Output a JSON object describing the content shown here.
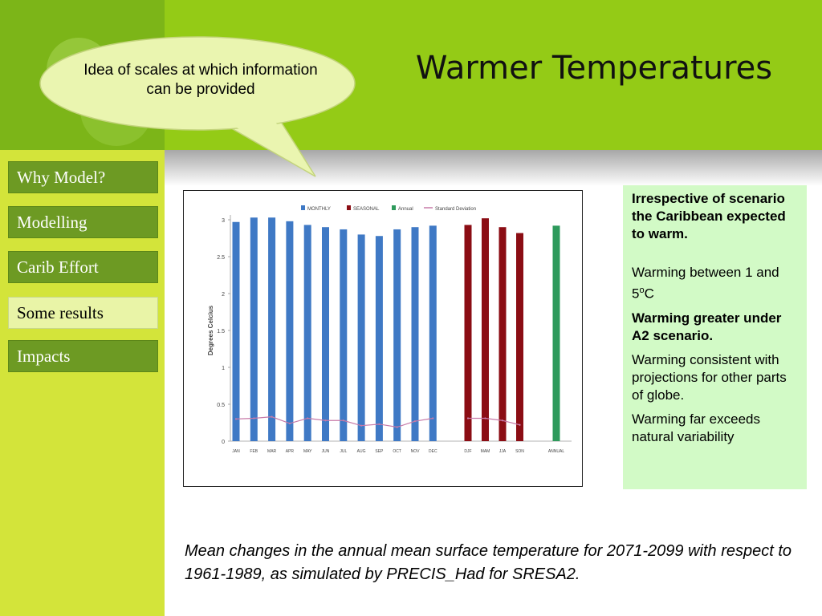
{
  "slide": {
    "title": "Warmer Temperatures",
    "callout": "Idea of scales at which information can be provided",
    "caption": "Mean changes in the annual mean surface temperature  for 2071-2099 with respect to 1961-1989, as simulated by PRECIS_Had for SRESA2."
  },
  "nav": [
    {
      "label": "Why Model?",
      "active": false
    },
    {
      "label": "Modelling",
      "active": false
    },
    {
      "label": "Carib Effort",
      "active": false
    },
    {
      "label": "Some results",
      "active": true
    },
    {
      "label": "Impacts",
      "active": false
    }
  ],
  "sidebox": {
    "p1": "Irrespective of scenario the Caribbean expected to warm.",
    "p2_pre": "Warming between 1 and 5",
    "p2_sup": "o",
    "p2_post": "C",
    "p3": "Warming greater under A2 scenario.",
    "p4": "Warming consistent with projections for other parts of globe.",
    "p5": "Warming far exceeds natural variability"
  },
  "chart_data": {
    "type": "bar",
    "ylabel": "Degrees Celcius",
    "ylim": [
      0,
      3
    ],
    "yticks": [
      "0",
      "0.5",
      "1",
      "1.5",
      "2",
      "2.5",
      "3"
    ],
    "grid": false,
    "legend_position": "top",
    "legend": [
      {
        "label": "MONTHLY",
        "color": "#3f79c5"
      },
      {
        "label": "SEASONAL",
        "color": "#8b0d14"
      },
      {
        "label": "Annual",
        "color": "#2e9a5c"
      },
      {
        "label": "Standard Deviation",
        "color": "#c77aa8"
      }
    ],
    "categories": [
      "JAN",
      "FEB",
      "MAR",
      "APR",
      "MAY",
      "JUN",
      "JUL",
      "AUG",
      "SEP",
      "OCT",
      "NOV",
      "DEC",
      "DJF",
      "MAM",
      "JJA",
      "SON",
      "ANNUAL"
    ],
    "series": [
      {
        "name": "MONTHLY",
        "color": "#3f79c5",
        "values": [
          2.97,
          3.03,
          3.03,
          2.98,
          2.93,
          2.9,
          2.87,
          2.8,
          2.78,
          2.87,
          2.9,
          2.92,
          null,
          null,
          null,
          null,
          null
        ]
      },
      {
        "name": "SEASONAL",
        "color": "#8b0d14",
        "values": [
          null,
          null,
          null,
          null,
          null,
          null,
          null,
          null,
          null,
          null,
          null,
          null,
          2.93,
          3.02,
          2.9,
          2.82,
          null
        ]
      },
      {
        "name": "Annual",
        "color": "#2e9a5c",
        "values": [
          null,
          null,
          null,
          null,
          null,
          null,
          null,
          null,
          null,
          null,
          null,
          null,
          null,
          null,
          null,
          null,
          2.92
        ]
      },
      {
        "name": "Standard Deviation",
        "color": "#c77aa8",
        "values": [
          0.3,
          0.31,
          0.33,
          0.24,
          0.31,
          0.28,
          0.28,
          0.21,
          0.23,
          0.19,
          0.27,
          0.31,
          0.31,
          0.31,
          0.28,
          0.22,
          null
        ]
      }
    ],
    "colors": {
      "axis": "#9a9a9a",
      "text": "#444444"
    }
  }
}
